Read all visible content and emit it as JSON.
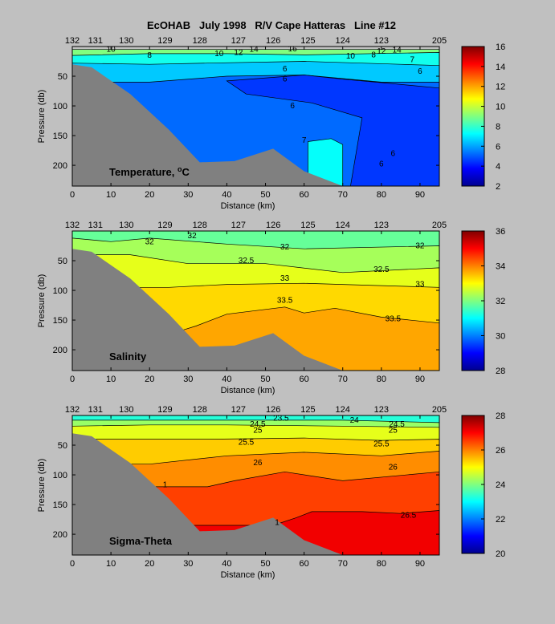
{
  "title": "EcOHAB   July 1998   R/V Cape Hatteras   Line #12",
  "station_labels": [
    {
      "text": "132",
      "km": 0
    },
    {
      "text": "131",
      "km": 6
    },
    {
      "text": "130",
      "km": 14
    },
    {
      "text": "129",
      "km": 24
    },
    {
      "text": "128",
      "km": 33
    },
    {
      "text": "127",
      "km": 43
    },
    {
      "text": "126",
      "km": 52
    },
    {
      "text": "125",
      "km": 61
    },
    {
      "text": "124",
      "km": 70
    },
    {
      "text": "123",
      "km": 80
    },
    {
      "text": "205",
      "km": 95
    }
  ],
  "colors": {
    "background": "#c0c0c0",
    "bottom": "#808080",
    "contour": "#000000",
    "jet": [
      "#00008f",
      "#0000ff",
      "#0080ff",
      "#00ffff",
      "#80ff80",
      "#ffff00",
      "#ff8000",
      "#ff0000",
      "#800000"
    ]
  },
  "chart_data": [
    {
      "type": "contour",
      "label": "Temperature, °C",
      "label_base": "Temperature, ",
      "label_unit": "oC",
      "xlabel": "Distance (km)",
      "ylabel": "Pressure (db)",
      "xlim": [
        0,
        95
      ],
      "ylim": [
        235,
        0
      ],
      "xticks": [
        0,
        10,
        20,
        30,
        40,
        50,
        60,
        70,
        80,
        90
      ],
      "yticks": [
        50,
        100,
        150,
        200
      ],
      "clim": [
        2,
        16
      ],
      "colorbar_ticks": [
        2,
        4,
        6,
        8,
        10,
        12,
        14,
        16
      ],
      "bottom_profile": [
        [
          0,
          30
        ],
        [
          5,
          35
        ],
        [
          15,
          80
        ],
        [
          25,
          140
        ],
        [
          33,
          195
        ],
        [
          42,
          193
        ],
        [
          52,
          172
        ],
        [
          60,
          210
        ],
        [
          70,
          235
        ]
      ],
      "fill_bands": [
        {
          "value": 9,
          "boundary": [
            [
              0,
              5
            ],
            [
              95,
              5
            ]
          ]
        },
        {
          "value": 7.5,
          "boundary": [
            [
              0,
              15
            ],
            [
              20,
              12
            ],
            [
              40,
              12
            ],
            [
              60,
              14
            ],
            [
              95,
              10
            ]
          ]
        },
        {
          "value": 6.5,
          "boundary": [
            [
              0,
              28
            ],
            [
              20,
              30
            ],
            [
              35,
              28
            ],
            [
              60,
              25
            ],
            [
              85,
              30
            ],
            [
              95,
              32
            ]
          ]
        },
        {
          "value": 5.2,
          "boundary": [
            [
              0,
              60
            ],
            [
              20,
              60
            ],
            [
              40,
              50
            ],
            [
              60,
              48
            ],
            [
              80,
              60
            ],
            [
              95,
              60
            ]
          ]
        }
      ],
      "cold_patches": [
        {
          "value": 4.5,
          "points": [
            [
              40,
              58
            ],
            [
              60,
              48
            ],
            [
              70,
              55
            ],
            [
              82,
              62
            ],
            [
              95,
              70
            ],
            [
              95,
              235
            ],
            [
              72,
              235
            ],
            [
              75,
              120
            ],
            [
              62,
              95
            ],
            [
              45,
              80
            ]
          ]
        }
      ],
      "warm_patches": [
        {
          "value": 7.3,
          "points": [
            [
              61,
              160
            ],
            [
              67,
              155
            ],
            [
              70,
              165
            ],
            [
              70,
              235
            ],
            [
              61,
              228
            ]
          ]
        }
      ],
      "contour_labels": [
        {
          "text": "10",
          "x": 10,
          "y": 5
        },
        {
          "text": "8",
          "x": 20,
          "y": 15
        },
        {
          "text": "6",
          "x": 55,
          "y": 38
        },
        {
          "text": "6",
          "x": 55,
          "y": 55
        },
        {
          "text": "6",
          "x": 57,
          "y": 100
        },
        {
          "text": "7",
          "x": 60,
          "y": 158
        },
        {
          "text": "6",
          "x": 80,
          "y": 198
        },
        {
          "text": "6",
          "x": 83,
          "y": 180
        },
        {
          "text": "16",
          "x": 57,
          "y": 4
        },
        {
          "text": "14",
          "x": 47,
          "y": 5
        },
        {
          "text": "12",
          "x": 43,
          "y": 10
        },
        {
          "text": "10",
          "x": 38,
          "y": 12
        },
        {
          "text": "10",
          "x": 72,
          "y": 16
        },
        {
          "text": "12",
          "x": 80,
          "y": 8
        },
        {
          "text": "14",
          "x": 84,
          "y": 6
        },
        {
          "text": "7",
          "x": 88,
          "y": 22
        },
        {
          "text": "6",
          "x": 90,
          "y": 42
        },
        {
          "text": "8",
          "x": 78,
          "y": 14
        }
      ]
    },
    {
      "type": "contour",
      "label": "Salinity",
      "xlabel": "Distance (km)",
      "ylabel": "Pressure (db)",
      "xlim": [
        0,
        95
      ],
      "ylim": [
        235,
        0
      ],
      "xticks": [
        0,
        10,
        20,
        30,
        40,
        50,
        60,
        70,
        80,
        90
      ],
      "yticks": [
        50,
        100,
        150,
        200
      ],
      "clim": [
        28,
        36
      ],
      "colorbar_ticks": [
        28,
        30,
        32,
        34,
        36
      ],
      "bottom_profile": [
        [
          0,
          30
        ],
        [
          5,
          35
        ],
        [
          15,
          80
        ],
        [
          25,
          140
        ],
        [
          33,
          195
        ],
        [
          42,
          193
        ],
        [
          52,
          172
        ],
        [
          60,
          210
        ],
        [
          70,
          235
        ]
      ],
      "fill_bands": [
        {
          "value": 31.8,
          "boundary": [
            [
              0,
              0
            ],
            [
              95,
              0
            ]
          ]
        },
        {
          "value": 32.3,
          "boundary": [
            [
              0,
              12
            ],
            [
              10,
              18
            ],
            [
              20,
              12
            ],
            [
              40,
              22
            ],
            [
              60,
              30
            ],
            [
              95,
              25
            ]
          ]
        },
        {
          "value": 32.8,
          "boundary": [
            [
              15,
              40
            ],
            [
              30,
              55
            ],
            [
              50,
              55
            ],
            [
              70,
              70
            ],
            [
              95,
              62
            ]
          ]
        },
        {
          "value": 33.3,
          "boundary": [
            [
              25,
              95
            ],
            [
              40,
              90
            ],
            [
              60,
              88
            ],
            [
              80,
              92
            ],
            [
              95,
              95
            ]
          ]
        },
        {
          "value": 33.7,
          "boundary": [
            [
              28,
              168
            ],
            [
              32,
              160
            ],
            [
              40,
              140
            ],
            [
              55,
              128
            ],
            [
              60,
              138
            ],
            [
              68,
              130
            ],
            [
              80,
              145
            ],
            [
              95,
              155
            ]
          ]
        }
      ],
      "contour_labels": [
        {
          "text": "32",
          "x": 31,
          "y": 8
        },
        {
          "text": "32",
          "x": 20,
          "y": 18
        },
        {
          "text": "32",
          "x": 55,
          "y": 27
        },
        {
          "text": "32",
          "x": 90,
          "y": 25
        },
        {
          "text": "32.5",
          "x": 45,
          "y": 50
        },
        {
          "text": "32.5",
          "x": 80,
          "y": 65
        },
        {
          "text": "33",
          "x": 55,
          "y": 80
        },
        {
          "text": "33",
          "x": 90,
          "y": 90
        },
        {
          "text": "33.5",
          "x": 55,
          "y": 117
        },
        {
          "text": "33.5",
          "x": 83,
          "y": 148
        }
      ]
    },
    {
      "type": "contour",
      "label": "Sigma-Theta",
      "xlabel": "Distance (km)",
      "ylabel": "Pressure (db)",
      "xlim": [
        0,
        95
      ],
      "ylim": [
        235,
        0
      ],
      "xticks": [
        0,
        10,
        20,
        30,
        40,
        50,
        60,
        70,
        80,
        90
      ],
      "yticks": [
        50,
        100,
        150,
        200
      ],
      "clim": [
        20,
        28
      ],
      "colorbar_ticks": [
        20,
        22,
        24,
        26,
        28
      ],
      "bottom_profile": [
        [
          0,
          30
        ],
        [
          5,
          35
        ],
        [
          15,
          80
        ],
        [
          25,
          140
        ],
        [
          33,
          195
        ],
        [
          42,
          193
        ],
        [
          52,
          172
        ],
        [
          60,
          210
        ],
        [
          70,
          235
        ]
      ],
      "fill_bands": [
        {
          "value": 23.3,
          "boundary": [
            [
              0,
              0
            ],
            [
              95,
              0
            ]
          ]
        },
        {
          "value": 24.2,
          "boundary": [
            [
              0,
              8
            ],
            [
              40,
              8
            ],
            [
              70,
              8
            ],
            [
              95,
              12
            ]
          ]
        },
        {
          "value": 24.8,
          "boundary": [
            [
              0,
              18
            ],
            [
              20,
              16
            ],
            [
              40,
              16
            ],
            [
              70,
              18
            ],
            [
              95,
              20
            ]
          ]
        },
        {
          "value": 25.4,
          "boundary": [
            [
              15,
              40
            ],
            [
              35,
              40
            ],
            [
              60,
              38
            ],
            [
              80,
              42
            ],
            [
              95,
              40
            ]
          ]
        },
        {
          "value": 25.9,
          "boundary": [
            [
              20,
              82
            ],
            [
              40,
              68
            ],
            [
              60,
              62
            ],
            [
              80,
              68
            ],
            [
              95,
              60
            ]
          ]
        },
        {
          "value": 26.5,
          "boundary": [
            [
              20,
              120
            ],
            [
              35,
              120
            ],
            [
              42,
              110
            ],
            [
              55,
              95
            ],
            [
              70,
              110
            ],
            [
              95,
              95
            ]
          ]
        },
        {
          "value": 27.1,
          "boundary": [
            [
              52,
              185
            ],
            [
              58,
              172
            ],
            [
              62,
              162
            ],
            [
              75,
              162
            ],
            [
              85,
              165
            ],
            [
              95,
              160
            ]
          ]
        }
      ],
      "contour_labels": [
        {
          "text": "23.5",
          "x": 54,
          "y": 5
        },
        {
          "text": "24",
          "x": 73,
          "y": 8
        },
        {
          "text": "24.5",
          "x": 48,
          "y": 15
        },
        {
          "text": "25",
          "x": 48,
          "y": 25
        },
        {
          "text": "24.5",
          "x": 84,
          "y": 15
        },
        {
          "text": "25",
          "x": 83,
          "y": 25
        },
        {
          "text": "25.5",
          "x": 45,
          "y": 45
        },
        {
          "text": "25.5",
          "x": 80,
          "y": 48
        },
        {
          "text": "26",
          "x": 48,
          "y": 80
        },
        {
          "text": "26",
          "x": 83,
          "y": 87
        },
        {
          "text": "26.5",
          "x": 87,
          "y": 168
        },
        {
          "text": "1",
          "x": 24,
          "y": 117
        },
        {
          "text": "1",
          "x": 53,
          "y": 180
        }
      ]
    }
  ]
}
